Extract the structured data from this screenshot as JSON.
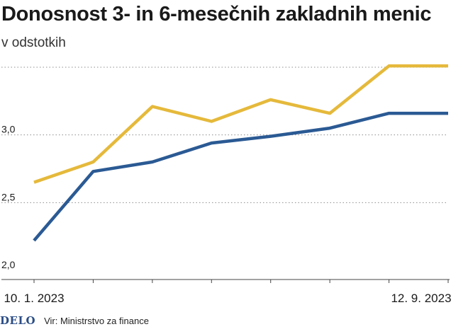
{
  "header": {
    "title": "Donosnost 3- in 6-mesečnih zakladnih menic",
    "subtitle": "v odstotkih"
  },
  "footer": {
    "logo": "DELO",
    "source": "Vir: Ministrstvo za finance"
  },
  "colors": {
    "series_3m": "#2b5a94",
    "series_6m": "#e5b93b",
    "grid": "#8c8c8c",
    "text": "#1a1a1a"
  },
  "chart_data": {
    "type": "line",
    "title": "Donosnost 3- in 6-mesečnih zakladnih menic",
    "subtitle": "v odstotkih",
    "x": [
      "10. 1. 2023",
      "",
      "",
      "",
      "",
      "",
      "",
      "12. 9. 2023"
    ],
    "x_tick_labels": [
      "10. 1. 2023",
      "12. 9. 2023"
    ],
    "y_tick_labels": [
      "2,0",
      "2,5",
      "3,0",
      ""
    ],
    "ylim": [
      2.0,
      3.5
    ],
    "grid": true,
    "series": [
      {
        "values": [
          2.22,
          2.73,
          2.8,
          2.94,
          2.99,
          3.05,
          3.16,
          3.16
        ],
        "color": "#2b5a94"
      },
      {
        "values": [
          2.65,
          2.8,
          3.21,
          3.1,
          3.26,
          3.16,
          3.51,
          3.51
        ],
        "color": "#e5b93b"
      }
    ]
  }
}
